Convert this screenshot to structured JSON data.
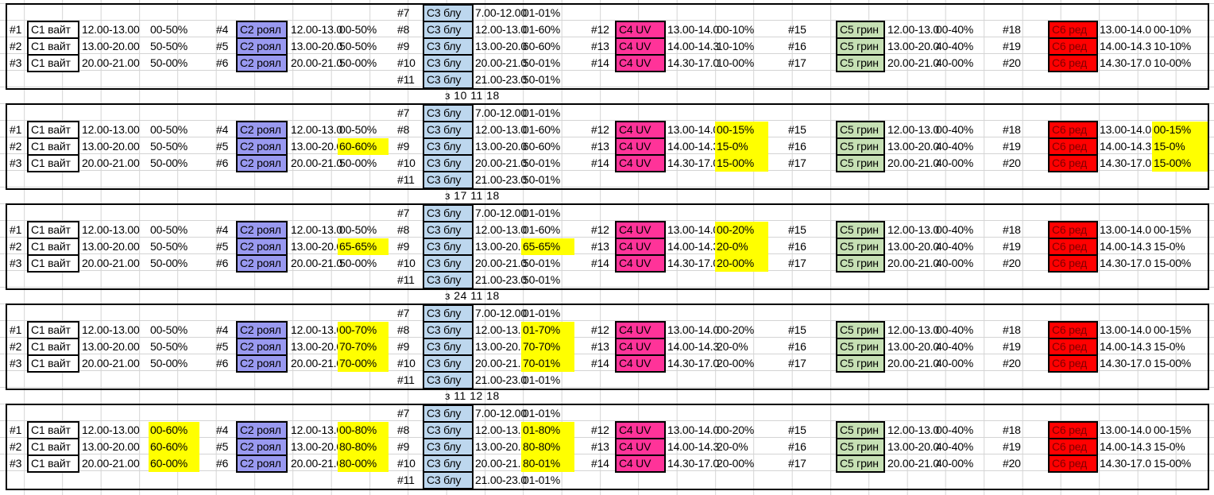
{
  "sheet": {
    "colors": {
      "c1_fill": "#ffffff",
      "c2_fill": "#9999f0",
      "c3_fill": "#bdd7ee",
      "c4_fill": "#ff3399",
      "c5_fill": "#ff0000",
      "c5_fill_green": "#c6e0b4",
      "c6_fill": "#ff0000",
      "c6_text": "#7f0000",
      "highlight": "#ffff00",
      "gridline": "#d4d4d4",
      "border": "#000000"
    },
    "blocks": [
      {
        "separator": "з 10 11 18",
        "sections": {
          "c1": {
            "label": "С1 вайт",
            "rows": [
              {
                "num": "#1",
                "time": "12.00-13.00",
                "pct": "00-50%",
                "hl": false
              },
              {
                "num": "#2",
                "time": "13.00-20.00",
                "pct": "50-50%",
                "hl": false
              },
              {
                "num": "#3",
                "time": "20.00-21.00",
                "pct": "50-00%",
                "hl": false
              }
            ]
          },
          "c2": {
            "label": "С2 роял",
            "rows": [
              {
                "num": "#4",
                "time": "12.00-13.0",
                "pct": "00-50%",
                "hl": false
              },
              {
                "num": "#5",
                "time": "13.00-20.0",
                "pct": "50-50%",
                "hl": false
              },
              {
                "num": "#6",
                "time": "20.00-21.0",
                "pct": "50-00%",
                "hl": false
              }
            ]
          },
          "c3": {
            "label": "С3 блу",
            "rows": [
              {
                "num": "#7",
                "time": "7.00-12.00",
                "pct": "01-01%",
                "hl": false
              },
              {
                "num": "#8",
                "time": "12.00-13.0",
                "pct": "01-60%",
                "hl": false
              },
              {
                "num": "#9",
                "time": "13.00-20.0",
                "pct": "60-60%",
                "hl": false
              },
              {
                "num": "#10",
                "time": "20.00-21.0",
                "pct": "50-01%",
                "hl": false
              },
              {
                "num": "#11",
                "time": "21.00-23.0",
                "pct": "50-01%",
                "hl": false
              }
            ]
          },
          "c4": {
            "label": "С4 UV",
            "rows": [
              {
                "num": "#12",
                "time": "13.00-14.0",
                "pct": "00-10%",
                "hl": false
              },
              {
                "num": "#13",
                "time": "14.00-14.3",
                "pct": "10-10%",
                "hl": false
              },
              {
                "num": "#14",
                "time": "14.30-17.0",
                "pct": "10-00%",
                "hl": false
              }
            ]
          },
          "c5": {
            "label": "С5 грин",
            "rows": [
              {
                "num": "#15",
                "time": "12.00-13.0",
                "pct": "00-40%",
                "hl": false
              },
              {
                "num": "#16",
                "time": "13.00-20.0",
                "pct": "40-40%",
                "hl": false
              },
              {
                "num": "#17",
                "time": "20.00-21.0",
                "pct": "40-00%",
                "hl": false
              }
            ]
          },
          "c6": {
            "label": "С6 ред",
            "rows": [
              {
                "num": "#18",
                "time": "13.00-14.0",
                "pct": "00-10%",
                "hl": false
              },
              {
                "num": "#19",
                "time": "14.00-14.3",
                "pct": "10-10%",
                "hl": false
              },
              {
                "num": "#20",
                "time": "14.30-17.0",
                "pct": "10-00%",
                "hl": false
              }
            ]
          }
        }
      },
      {
        "separator": "з 17 11 18",
        "sections": {
          "c1": {
            "label": "С1 вайт",
            "rows": [
              {
                "num": "#1",
                "time": "12.00-13.00",
                "pct": "00-50%",
                "hl": false
              },
              {
                "num": "#2",
                "time": "13.00-20.00",
                "pct": "50-50%",
                "hl": false
              },
              {
                "num": "#3",
                "time": "20.00-21.00",
                "pct": "50-00%",
                "hl": false
              }
            ]
          },
          "c2": {
            "label": "С2 роял",
            "rows": [
              {
                "num": "#4",
                "time": "12.00-13.0",
                "pct": "00-50%",
                "hl": false
              },
              {
                "num": "#5",
                "time": "13.00-20.0",
                "pct": "60-60%",
                "hl": true
              },
              {
                "num": "#6",
                "time": "20.00-21.0",
                "pct": "50-00%",
                "hl": false
              }
            ]
          },
          "c3": {
            "label": "С3 блу",
            "rows": [
              {
                "num": "#7",
                "time": "7.00-12.00",
                "pct": "01-01%",
                "hl": false
              },
              {
                "num": "#8",
                "time": "12.00-13.0",
                "pct": "01-60%",
                "hl": false
              },
              {
                "num": "#9",
                "time": "13.00-20.0",
                "pct": "60-60%",
                "hl": false
              },
              {
                "num": "#10",
                "time": "20.00-21.0",
                "pct": "50-01%",
                "hl": false
              },
              {
                "num": "#11",
                "time": "21.00-23.0",
                "pct": "50-01%",
                "hl": false
              }
            ]
          },
          "c4": {
            "label": "С4 UV",
            "rows": [
              {
                "num": "#12",
                "time": "13.00-14.0",
                "pct": "00-15%",
                "hl": true
              },
              {
                "num": "#13",
                "time": "14.00-14.3",
                "pct": "15-0%",
                "hl": true
              },
              {
                "num": "#14",
                "time": "14.30-17.0",
                "pct": "15-00%",
                "hl": true
              }
            ]
          },
          "c5": {
            "label": "С5 грин",
            "rows": [
              {
                "num": "#15",
                "time": "12.00-13.0",
                "pct": "00-40%",
                "hl": false
              },
              {
                "num": "#16",
                "time": "13.00-20.0",
                "pct": "40-40%",
                "hl": false
              },
              {
                "num": "#17",
                "time": "20.00-21.0",
                "pct": "40-00%",
                "hl": false
              }
            ]
          },
          "c6": {
            "label": "С6 ред",
            "rows": [
              {
                "num": "#18",
                "time": "13.00-14.0",
                "pct": "00-15%",
                "hl": true
              },
              {
                "num": "#19",
                "time": "14.00-14.3",
                "pct": "15-0%",
                "hl": true
              },
              {
                "num": "#20",
                "time": "14.30-17.0",
                "pct": "15-00%",
                "hl": true
              }
            ]
          }
        }
      },
      {
        "separator": "з 24 11 18",
        "sections": {
          "c1": {
            "label": "С1 вайт",
            "rows": [
              {
                "num": "#1",
                "time": "12.00-13.00",
                "pct": "00-50%",
                "hl": false
              },
              {
                "num": "#2",
                "time": "13.00-20.00",
                "pct": "50-50%",
                "hl": false
              },
              {
                "num": "#3",
                "time": "20.00-21.00",
                "pct": "50-00%",
                "hl": false
              }
            ]
          },
          "c2": {
            "label": "С2 роял",
            "rows": [
              {
                "num": "#4",
                "time": "12.00-13.0",
                "pct": "00-50%",
                "hl": false
              },
              {
                "num": "#5",
                "time": "13.00-20.0",
                "pct": "65-65%",
                "hl": true
              },
              {
                "num": "#6",
                "time": "20.00-21.0",
                "pct": "50-00%",
                "hl": false
              }
            ]
          },
          "c3": {
            "label": "С3 блу",
            "rows": [
              {
                "num": "#7",
                "time": "7.00-12.00",
                "pct": "01-01%",
                "hl": false
              },
              {
                "num": "#8",
                "time": "12.00-13.0",
                "pct": "01-60%",
                "hl": false
              },
              {
                "num": "#9",
                "time": "13.00-20.0",
                "pct": "65-65%",
                "hl": true
              },
              {
                "num": "#10",
                "time": "20.00-21.0",
                "pct": "50-01%",
                "hl": false
              },
              {
                "num": "#11",
                "time": "21.00-23.0",
                "pct": "50-01%",
                "hl": false
              }
            ]
          },
          "c4": {
            "label": "С4 UV",
            "rows": [
              {
                "num": "#12",
                "time": "13.00-14.0",
                "pct": "00-20%",
                "hl": true
              },
              {
                "num": "#13",
                "time": "14.00-14.3",
                "pct": "20-0%",
                "hl": true
              },
              {
                "num": "#14",
                "time": "14.30-17.0",
                "pct": "20-00%",
                "hl": true
              }
            ]
          },
          "c5": {
            "label": "С5 грин",
            "rows": [
              {
                "num": "#15",
                "time": "12.00-13.0",
                "pct": "00-40%",
                "hl": false
              },
              {
                "num": "#16",
                "time": "13.00-20.0",
                "pct": "40-40%",
                "hl": false
              },
              {
                "num": "#17",
                "time": "20.00-21.0",
                "pct": "40-00%",
                "hl": false
              }
            ]
          },
          "c6": {
            "label": "С6 ред",
            "rows": [
              {
                "num": "#18",
                "time": "13.00-14.0",
                "pct": "00-15%",
                "hl": false
              },
              {
                "num": "#19",
                "time": "14.00-14.3",
                "pct": "15-0%",
                "hl": false
              },
              {
                "num": "#20",
                "time": "14.30-17.0",
                "pct": "15-00%",
                "hl": false
              }
            ]
          }
        }
      },
      {
        "separator": "з 11 12 18",
        "sections": {
          "c1": {
            "label": "С1 вайт",
            "rows": [
              {
                "num": "#1",
                "time": "12.00-13.00",
                "pct": "00-50%",
                "hl": false
              },
              {
                "num": "#2",
                "time": "13.00-20.00",
                "pct": "50-50%",
                "hl": false
              },
              {
                "num": "#3",
                "time": "20.00-21.00",
                "pct": "50-00%",
                "hl": false
              }
            ]
          },
          "c2": {
            "label": "С2 роял",
            "rows": [
              {
                "num": "#4",
                "time": "12.00-13.0",
                "pct": "00-70%",
                "hl": true
              },
              {
                "num": "#5",
                "time": "13.00-20.0",
                "pct": "70-70%",
                "hl": true
              },
              {
                "num": "#6",
                "time": "20.00-21.0",
                "pct": "70-00%",
                "hl": true
              }
            ]
          },
          "c3": {
            "label": "С3 блу",
            "rows": [
              {
                "num": "#7",
                "time": "7.00-12.00",
                "pct": "01-01%",
                "hl": false
              },
              {
                "num": "#8",
                "time": "12.00-13.0",
                "pct": "01-70%",
                "hl": true
              },
              {
                "num": "#9",
                "time": "13.00-20.0",
                "pct": "70-70%",
                "hl": true
              },
              {
                "num": "#10",
                "time": "20.00-21.0",
                "pct": "70-01%",
                "hl": true
              },
              {
                "num": "#11",
                "time": "21.00-23.0",
                "pct": "01-01%",
                "hl": false
              }
            ]
          },
          "c4": {
            "label": "С4 UV",
            "rows": [
              {
                "num": "#12",
                "time": "13.00-14.0",
                "pct": "00-20%",
                "hl": false
              },
              {
                "num": "#13",
                "time": "14.00-14.3",
                "pct": "20-0%",
                "hl": false
              },
              {
                "num": "#14",
                "time": "14.30-17.0",
                "pct": "20-00%",
                "hl": false
              }
            ]
          },
          "c5": {
            "label": "С5 грин",
            "rows": [
              {
                "num": "#15",
                "time": "12.00-13.0",
                "pct": "00-40%",
                "hl": false
              },
              {
                "num": "#16",
                "time": "13.00-20.0",
                "pct": "40-40%",
                "hl": false
              },
              {
                "num": "#17",
                "time": "20.00-21.0",
                "pct": "40-00%",
                "hl": false
              }
            ]
          },
          "c6": {
            "label": "С6 ред",
            "rows": [
              {
                "num": "#18",
                "time": "13.00-14.0",
                "pct": "00-15%",
                "hl": false
              },
              {
                "num": "#19",
                "time": "14.00-14.3",
                "pct": "15-0%",
                "hl": false
              },
              {
                "num": "#20",
                "time": "14.30-17.0",
                "pct": "15-00%",
                "hl": false
              }
            ]
          }
        }
      },
      {
        "separator": "",
        "sections": {
          "c1": {
            "label": "С1 вайт",
            "rows": [
              {
                "num": "#1",
                "time": "12.00-13.00",
                "pct": "00-60%",
                "hl": true
              },
              {
                "num": "#2",
                "time": "13.00-20.00",
                "pct": "60-60%",
                "hl": true
              },
              {
                "num": "#3",
                "time": "20.00-21.00",
                "pct": "60-00%",
                "hl": true
              }
            ]
          },
          "c2": {
            "label": "С2 роял",
            "rows": [
              {
                "num": "#4",
                "time": "12.00-13.0",
                "pct": "00-80%",
                "hl": true
              },
              {
                "num": "#5",
                "time": "13.00-20.0",
                "pct": "80-80%",
                "hl": true
              },
              {
                "num": "#6",
                "time": "20.00-21.0",
                "pct": "80-00%",
                "hl": true
              }
            ]
          },
          "c3": {
            "label": "С3 блу",
            "rows": [
              {
                "num": "#7",
                "time": "7.00-12.00",
                "pct": "01-01%",
                "hl": false
              },
              {
                "num": "#8",
                "time": "12.00-13.0",
                "pct": "01-80%",
                "hl": true
              },
              {
                "num": "#9",
                "time": "13.00-20.0",
                "pct": "80-80%",
                "hl": true
              },
              {
                "num": "#10",
                "time": "20.00-21.0",
                "pct": "80-01%",
                "hl": true
              },
              {
                "num": "#11",
                "time": "21.00-23.0",
                "pct": "01-01%",
                "hl": false
              }
            ]
          },
          "c4": {
            "label": "С4 UV",
            "rows": [
              {
                "num": "#12",
                "time": "13.00-14.0",
                "pct": "00-20%",
                "hl": false
              },
              {
                "num": "#13",
                "time": "14.00-14.3",
                "pct": "20-0%",
                "hl": false
              },
              {
                "num": "#14",
                "time": "14.30-17.0",
                "pct": "20-00%",
                "hl": false
              }
            ]
          },
          "c5": {
            "label": "С5 грин",
            "rows": [
              {
                "num": "#15",
                "time": "12.00-13.0",
                "pct": "00-40%",
                "hl": false
              },
              {
                "num": "#16",
                "time": "13.00-20.0",
                "pct": "40-40%",
                "hl": false
              },
              {
                "num": "#17",
                "time": "20.00-21.0",
                "pct": "40-00%",
                "hl": false
              }
            ]
          },
          "c6": {
            "label": "С6 ред",
            "rows": [
              {
                "num": "#18",
                "time": "13.00-14.0",
                "pct": "00-15%",
                "hl": false
              },
              {
                "num": "#19",
                "time": "14.00-14.3",
                "pct": "15-0%",
                "hl": false
              },
              {
                "num": "#20",
                "time": "14.30-17.0",
                "pct": "15-00%",
                "hl": false
              }
            ]
          }
        }
      }
    ]
  }
}
